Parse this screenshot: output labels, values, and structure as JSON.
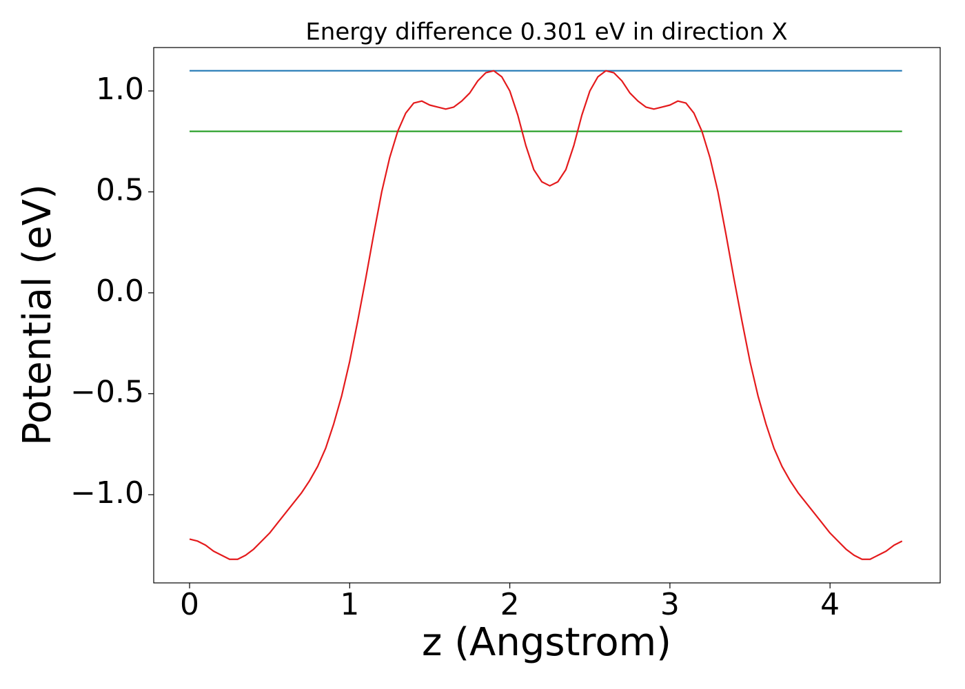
{
  "chart_data": {
    "type": "line",
    "title": "Energy difference 0.301 eV in direction X",
    "xlabel": "z (Angstrom)",
    "ylabel": "Potential (eV)",
    "xlim": [
      -0.224,
      4.688
    ],
    "ylim": [
      -1.437,
      1.215
    ],
    "xticks": [
      0,
      1,
      2,
      3,
      4
    ],
    "yticks": [
      {
        "value": -1,
        "label": "−1.0"
      },
      {
        "value": -0.5,
        "label": "−0.5"
      },
      {
        "value": 0,
        "label": "0.0"
      },
      {
        "value": 0.5,
        "label": "0.5"
      },
      {
        "value": 1,
        "label": "1.0"
      }
    ],
    "grid": false,
    "series": [
      {
        "color": "#1f77b4",
        "x": [
          0,
          4.45
        ],
        "values": [
          1.1,
          1.1
        ]
      },
      {
        "color": "#2ca02c",
        "x": [
          0,
          4.45
        ],
        "values": [
          0.8,
          0.8
        ]
      },
      {
        "color": "#e41a1c",
        "x": [
          0,
          0.05,
          0.1,
          0.15,
          0.2,
          0.25,
          0.3,
          0.35,
          0.4,
          0.45,
          0.5,
          0.55,
          0.6,
          0.65,
          0.7,
          0.75,
          0.8,
          0.85,
          0.9,
          0.95,
          1.0,
          1.05,
          1.1,
          1.15,
          1.2,
          1.25,
          1.3,
          1.35,
          1.4,
          1.45,
          1.5,
          1.55,
          1.6,
          1.65,
          1.7,
          1.75,
          1.8,
          1.85,
          1.9,
          1.95,
          2.0,
          2.05,
          2.1,
          2.15,
          2.2,
          2.25,
          2.3,
          2.35,
          2.4,
          2.45,
          2.5,
          2.55,
          2.6,
          2.65,
          2.7,
          2.75,
          2.8,
          2.85,
          2.9,
          2.95,
          3.0,
          3.05,
          3.1,
          3.15,
          3.2,
          3.25,
          3.3,
          3.35,
          3.4,
          3.45,
          3.5,
          3.55,
          3.6,
          3.65,
          3.7,
          3.75,
          3.8,
          3.85,
          3.9,
          3.95,
          4.0,
          4.05,
          4.1,
          4.15,
          4.2,
          4.25,
          4.3,
          4.35,
          4.4,
          4.45
        ],
        "values": [
          -1.22,
          -1.23,
          -1.25,
          -1.28,
          -1.3,
          -1.32,
          -1.32,
          -1.3,
          -1.27,
          -1.23,
          -1.19,
          -1.14,
          -1.09,
          -1.04,
          -0.99,
          -0.93,
          -0.86,
          -0.77,
          -0.65,
          -0.51,
          -0.34,
          -0.14,
          0.07,
          0.29,
          0.5,
          0.67,
          0.8,
          0.89,
          0.94,
          0.95,
          0.93,
          0.92,
          0.91,
          0.92,
          0.95,
          0.99,
          1.05,
          1.09,
          1.1,
          1.07,
          1.0,
          0.88,
          0.73,
          0.61,
          0.55,
          0.53,
          0.55,
          0.61,
          0.73,
          0.88,
          1.0,
          1.07,
          1.1,
          1.09,
          1.05,
          0.99,
          0.95,
          0.92,
          0.91,
          0.92,
          0.93,
          0.95,
          0.94,
          0.89,
          0.8,
          0.67,
          0.5,
          0.29,
          0.07,
          -0.14,
          -0.34,
          -0.51,
          -0.65,
          -0.77,
          -0.86,
          -0.93,
          -0.99,
          -1.04,
          -1.09,
          -1.14,
          -1.19,
          -1.23,
          -1.27,
          -1.3,
          -1.32,
          -1.32,
          -1.3,
          -1.28,
          -1.25,
          -1.23
        ]
      }
    ]
  }
}
